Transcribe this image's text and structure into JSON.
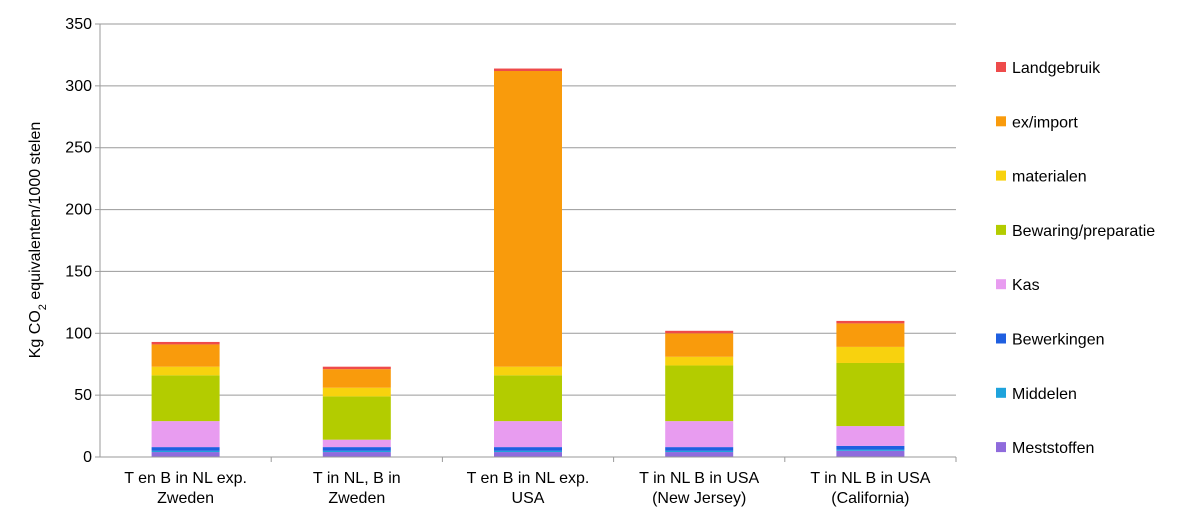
{
  "chart_data": {
    "type": "bar",
    "stacked": true,
    "categories": [
      [
        "T en B in NL exp.",
        "Zweden"
      ],
      [
        "T in NL, B in",
        "Zweden"
      ],
      [
        "T en B in NL exp.",
        "USA"
      ],
      [
        "T in NL B in USA",
        "(New Jersey)"
      ],
      [
        "T in NL B in USA",
        "(California)"
      ]
    ],
    "ylabel": "Kg CO2 equivalenten/1000 stelen",
    "ylim": [
      0,
      350
    ],
    "yticks": [
      0,
      50,
      100,
      150,
      200,
      250,
      300,
      350
    ],
    "grid": true,
    "legend_position": "right",
    "series": [
      {
        "name": "Meststoffen",
        "color": "#8f6bdc",
        "values": [
          4,
          4,
          4,
          4,
          5
        ]
      },
      {
        "name": "Middelen",
        "color": "#1ea3dc",
        "values": [
          1,
          1,
          1,
          1,
          1
        ]
      },
      {
        "name": "Bewerkingen",
        "color": "#1f5fe0",
        "values": [
          3,
          3,
          3,
          3,
          3
        ]
      },
      {
        "name": "Kas",
        "color": "#e89cf0",
        "values": [
          21,
          6,
          21,
          21,
          16
        ]
      },
      {
        "name": "Bewaring/preparatie",
        "color": "#b3cc00",
        "values": [
          37,
          35,
          37,
          45,
          51
        ]
      },
      {
        "name": "materialen",
        "color": "#f8d20e",
        "values": [
          7,
          7,
          7,
          7,
          13
        ]
      },
      {
        "name": "ex/import",
        "color": "#f99b0c",
        "values": [
          18,
          15,
          239,
          19,
          19
        ]
      },
      {
        "name": "Landgebruik",
        "color": "#ee4b4b",
        "values": [
          2,
          2,
          2,
          2,
          2
        ]
      }
    ]
  }
}
